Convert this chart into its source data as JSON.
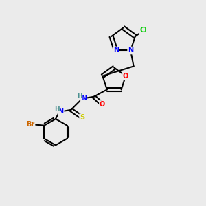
{
  "background_color": "#ebebeb",
  "bond_color": "#000000",
  "atom_colors": {
    "N": "#0000ff",
    "O": "#ff0000",
    "S": "#cccc00",
    "Cl": "#00cc00",
    "Br": "#cc6600",
    "H": "#4a9090",
    "C": "#000000"
  },
  "figsize": [
    3.0,
    3.0
  ],
  "dpi": 100
}
